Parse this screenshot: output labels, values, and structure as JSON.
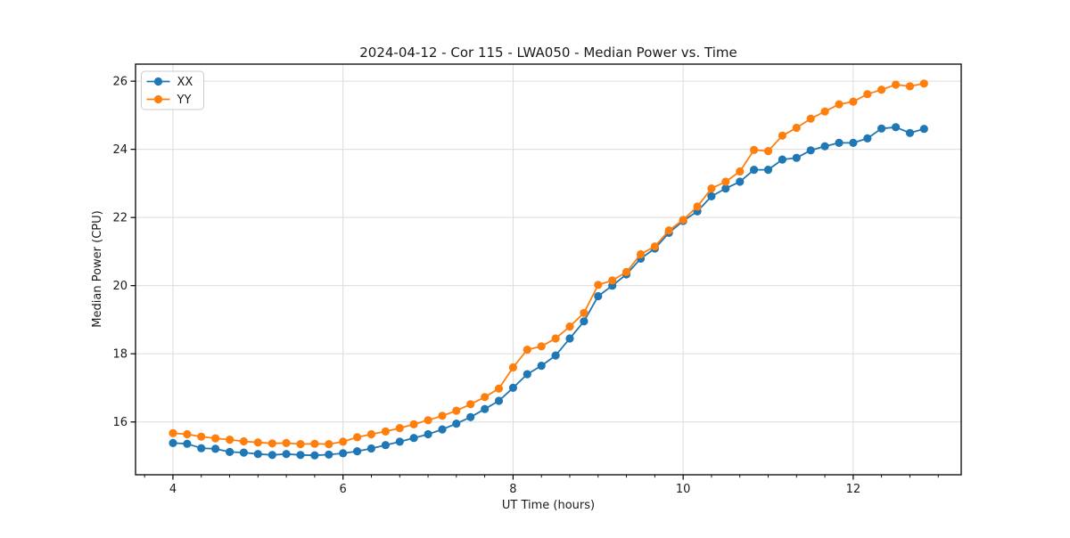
{
  "figure": {
    "background": "#ffffff",
    "spine_color": "#000000",
    "grid_color": "#dcdcdc",
    "text_color": "#1a1a1a"
  },
  "chart_data": {
    "type": "line",
    "title": "2024-04-12 - Cor 115 - LWA050 - Median Power vs. Time",
    "xlabel": "UT Time (hours)",
    "ylabel": "Median Power (CPU)",
    "xlim": [
      3.56,
      13.27
    ],
    "ylim": [
      14.45,
      26.5
    ],
    "x_ticks": [
      4,
      6,
      8,
      10,
      12
    ],
    "y_ticks": [
      16,
      18,
      20,
      22,
      24,
      26
    ],
    "x_minor_step": 0.33333,
    "grid": true,
    "legend_position": "upper-left",
    "marker": "circle",
    "x": [
      4.0,
      4.167,
      4.333,
      4.5,
      4.667,
      4.833,
      5.0,
      5.167,
      5.333,
      5.5,
      5.667,
      5.833,
      6.0,
      6.167,
      6.333,
      6.5,
      6.667,
      6.833,
      7.0,
      7.167,
      7.333,
      7.5,
      7.667,
      7.833,
      8.0,
      8.167,
      8.333,
      8.5,
      8.667,
      8.833,
      9.0,
      9.167,
      9.333,
      9.5,
      9.667,
      9.833,
      10.0,
      10.167,
      10.333,
      10.5,
      10.667,
      10.833,
      11.0,
      11.167,
      11.333,
      11.5,
      11.667,
      11.833,
      12.0,
      12.167,
      12.333,
      12.5,
      12.667,
      12.833
    ],
    "series": [
      {
        "name": "XX",
        "color": "#1f77b4",
        "values": [
          15.38,
          15.36,
          15.23,
          15.21,
          15.12,
          15.1,
          15.06,
          15.03,
          15.06,
          15.03,
          15.02,
          15.04,
          15.08,
          15.14,
          15.22,
          15.32,
          15.42,
          15.53,
          15.64,
          15.78,
          15.95,
          16.14,
          16.38,
          16.62,
          17.0,
          17.4,
          17.65,
          17.95,
          18.45,
          18.95,
          19.69,
          20.0,
          20.33,
          20.79,
          21.09,
          21.55,
          21.9,
          22.18,
          22.62,
          22.85,
          23.05,
          23.4,
          23.4,
          23.7,
          23.75,
          23.97,
          24.09,
          24.19,
          24.19,
          24.32,
          24.61,
          24.65,
          24.48,
          24.6
        ]
      },
      {
        "name": "YY",
        "color": "#ff7f0e",
        "values": [
          15.67,
          15.64,
          15.57,
          15.52,
          15.48,
          15.43,
          15.4,
          15.37,
          15.38,
          15.35,
          15.36,
          15.35,
          15.42,
          15.55,
          15.64,
          15.72,
          15.82,
          15.93,
          16.05,
          16.18,
          16.33,
          16.52,
          16.73,
          16.98,
          17.6,
          18.12,
          18.22,
          18.45,
          18.8,
          19.2,
          20.02,
          20.15,
          20.4,
          20.92,
          21.15,
          21.62,
          21.93,
          22.32,
          22.85,
          23.05,
          23.35,
          23.98,
          23.95,
          24.4,
          24.63,
          24.9,
          25.11,
          25.32,
          25.4,
          25.62,
          25.75,
          25.9,
          25.85,
          25.93
        ]
      }
    ]
  }
}
